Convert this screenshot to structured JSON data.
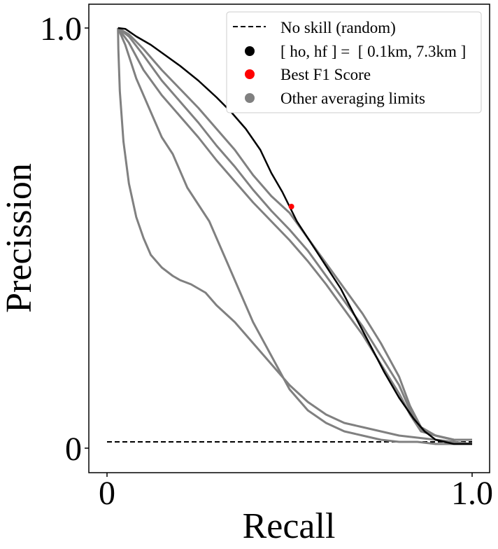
{
  "chart_data": {
    "type": "line",
    "title": "",
    "xlabel": "Recall",
    "ylabel": "Precission",
    "xlim": [
      -0.04,
      1.04
    ],
    "ylim": [
      -0.05,
      1.05
    ],
    "x_ticks": [
      {
        "value": 0,
        "label": "0"
      },
      {
        "value": 1,
        "label": "1.0"
      }
    ],
    "y_ticks": [
      {
        "value": 0,
        "label": "0"
      },
      {
        "value": 1,
        "label": "1.0"
      }
    ],
    "grid": false,
    "legend_position": "top-right",
    "legend": [
      {
        "label": "No skill (random)",
        "marker": "dashed-line",
        "color": "#000000"
      },
      {
        "label": "[ ho, hf ] =  [ 0.1km, 7.3km ]",
        "marker": "dot",
        "color": "#000000"
      },
      {
        "label": "Best F1 Score",
        "marker": "dot",
        "color": "#ff0000"
      },
      {
        "label": "Other averaging limits",
        "marker": "dot",
        "color": "#808080"
      }
    ],
    "no_skill": {
      "y": 0.015,
      "x": [
        0,
        1
      ],
      "color": "#000000",
      "style": "dashed"
    },
    "series": [
      {
        "name": "[ ho, hf ] =  [ 0.1km, 7.3km ]",
        "color": "#000000",
        "x": [
          0.03,
          0.05,
          0.08,
          0.12,
          0.16,
          0.2,
          0.25,
          0.3,
          0.34,
          0.38,
          0.42,
          0.45,
          0.48,
          0.5,
          0.52,
          0.55,
          0.58,
          0.61,
          0.64,
          0.67,
          0.7,
          0.73,
          0.76,
          0.8,
          0.84,
          0.87,
          0.9,
          0.95,
          1.0
        ],
        "y": [
          1.0,
          0.998,
          0.98,
          0.96,
          0.935,
          0.91,
          0.875,
          0.835,
          0.8,
          0.76,
          0.71,
          0.655,
          0.61,
          0.575,
          0.54,
          0.5,
          0.46,
          0.42,
          0.38,
          0.33,
          0.28,
          0.23,
          0.18,
          0.12,
          0.07,
          0.04,
          0.02,
          0.01,
          0.01
        ]
      },
      {
        "name": "Other averaging limits",
        "color": "#808080",
        "x": [
          0.03,
          0.06,
          0.1,
          0.15,
          0.2,
          0.25,
          0.3,
          0.35,
          0.4,
          0.45,
          0.5,
          0.55,
          0.6,
          0.65,
          0.7,
          0.75,
          0.8,
          0.83,
          0.86,
          0.9,
          0.95,
          1.0
        ],
        "y": [
          1.0,
          0.985,
          0.95,
          0.9,
          0.855,
          0.81,
          0.76,
          0.71,
          0.65,
          0.6,
          0.56,
          0.5,
          0.44,
          0.38,
          0.32,
          0.25,
          0.17,
          0.1,
          0.05,
          0.03,
          0.02,
          0.02
        ]
      },
      {
        "name": "Other averaging limits",
        "color": "#808080",
        "x": [
          0.03,
          0.06,
          0.1,
          0.15,
          0.2,
          0.25,
          0.3,
          0.35,
          0.4,
          0.45,
          0.5,
          0.55,
          0.6,
          0.65,
          0.7,
          0.75,
          0.8,
          0.83,
          0.86,
          0.9,
          0.95,
          1.0
        ],
        "y": [
          1.0,
          0.98,
          0.935,
          0.875,
          0.825,
          0.775,
          0.72,
          0.67,
          0.615,
          0.565,
          0.52,
          0.47,
          0.41,
          0.35,
          0.29,
          0.22,
          0.15,
          0.09,
          0.045,
          0.03,
          0.02,
          0.02
        ]
      },
      {
        "name": "Other averaging limits",
        "color": "#808080",
        "x": [
          0.03,
          0.06,
          0.1,
          0.15,
          0.2,
          0.25,
          0.3,
          0.35,
          0.4,
          0.45,
          0.5,
          0.55,
          0.6,
          0.65,
          0.7,
          0.75,
          0.8,
          0.83,
          0.86,
          0.9,
          0.95,
          1.0
        ],
        "y": [
          1.0,
          0.965,
          0.9,
          0.84,
          0.79,
          0.74,
          0.685,
          0.635,
          0.585,
          0.54,
          0.495,
          0.445,
          0.39,
          0.33,
          0.27,
          0.2,
          0.13,
          0.08,
          0.04,
          0.03,
          0.02,
          0.02
        ]
      },
      {
        "name": "Other averaging limits",
        "color": "#808080",
        "x": [
          0.03,
          0.05,
          0.08,
          0.12,
          0.15,
          0.18,
          0.2,
          0.22,
          0.25,
          0.28,
          0.3,
          0.33,
          0.36,
          0.4,
          0.45,
          0.5,
          0.55,
          0.6,
          0.65,
          0.7,
          0.75,
          0.8,
          0.85,
          0.9,
          0.95,
          1.0
        ],
        "y": [
          1.0,
          0.96,
          0.88,
          0.8,
          0.74,
          0.7,
          0.66,
          0.62,
          0.58,
          0.54,
          0.5,
          0.44,
          0.38,
          0.3,
          0.22,
          0.14,
          0.09,
          0.06,
          0.04,
          0.03,
          0.02,
          0.015,
          0.015,
          0.01,
          0.01,
          0.01
        ]
      },
      {
        "name": "Other averaging limits",
        "color": "#808080",
        "x": [
          0.03,
          0.031,
          0.035,
          0.045,
          0.06,
          0.08,
          0.1,
          0.12,
          0.15,
          0.18,
          0.2,
          0.23,
          0.27,
          0.3,
          0.35,
          0.4,
          0.45,
          0.5,
          0.55,
          0.6,
          0.65,
          0.7,
          0.75,
          0.8,
          0.85,
          0.9,
          0.95,
          1.0
        ],
        "y": [
          1.0,
          0.95,
          0.85,
          0.73,
          0.63,
          0.55,
          0.5,
          0.46,
          0.43,
          0.41,
          0.4,
          0.39,
          0.37,
          0.34,
          0.3,
          0.25,
          0.2,
          0.15,
          0.11,
          0.08,
          0.06,
          0.05,
          0.04,
          0.03,
          0.025,
          0.02,
          0.015,
          0.01
        ]
      }
    ],
    "best_f1": {
      "x": 0.505,
      "y": 0.575,
      "color": "#ff0000"
    }
  }
}
